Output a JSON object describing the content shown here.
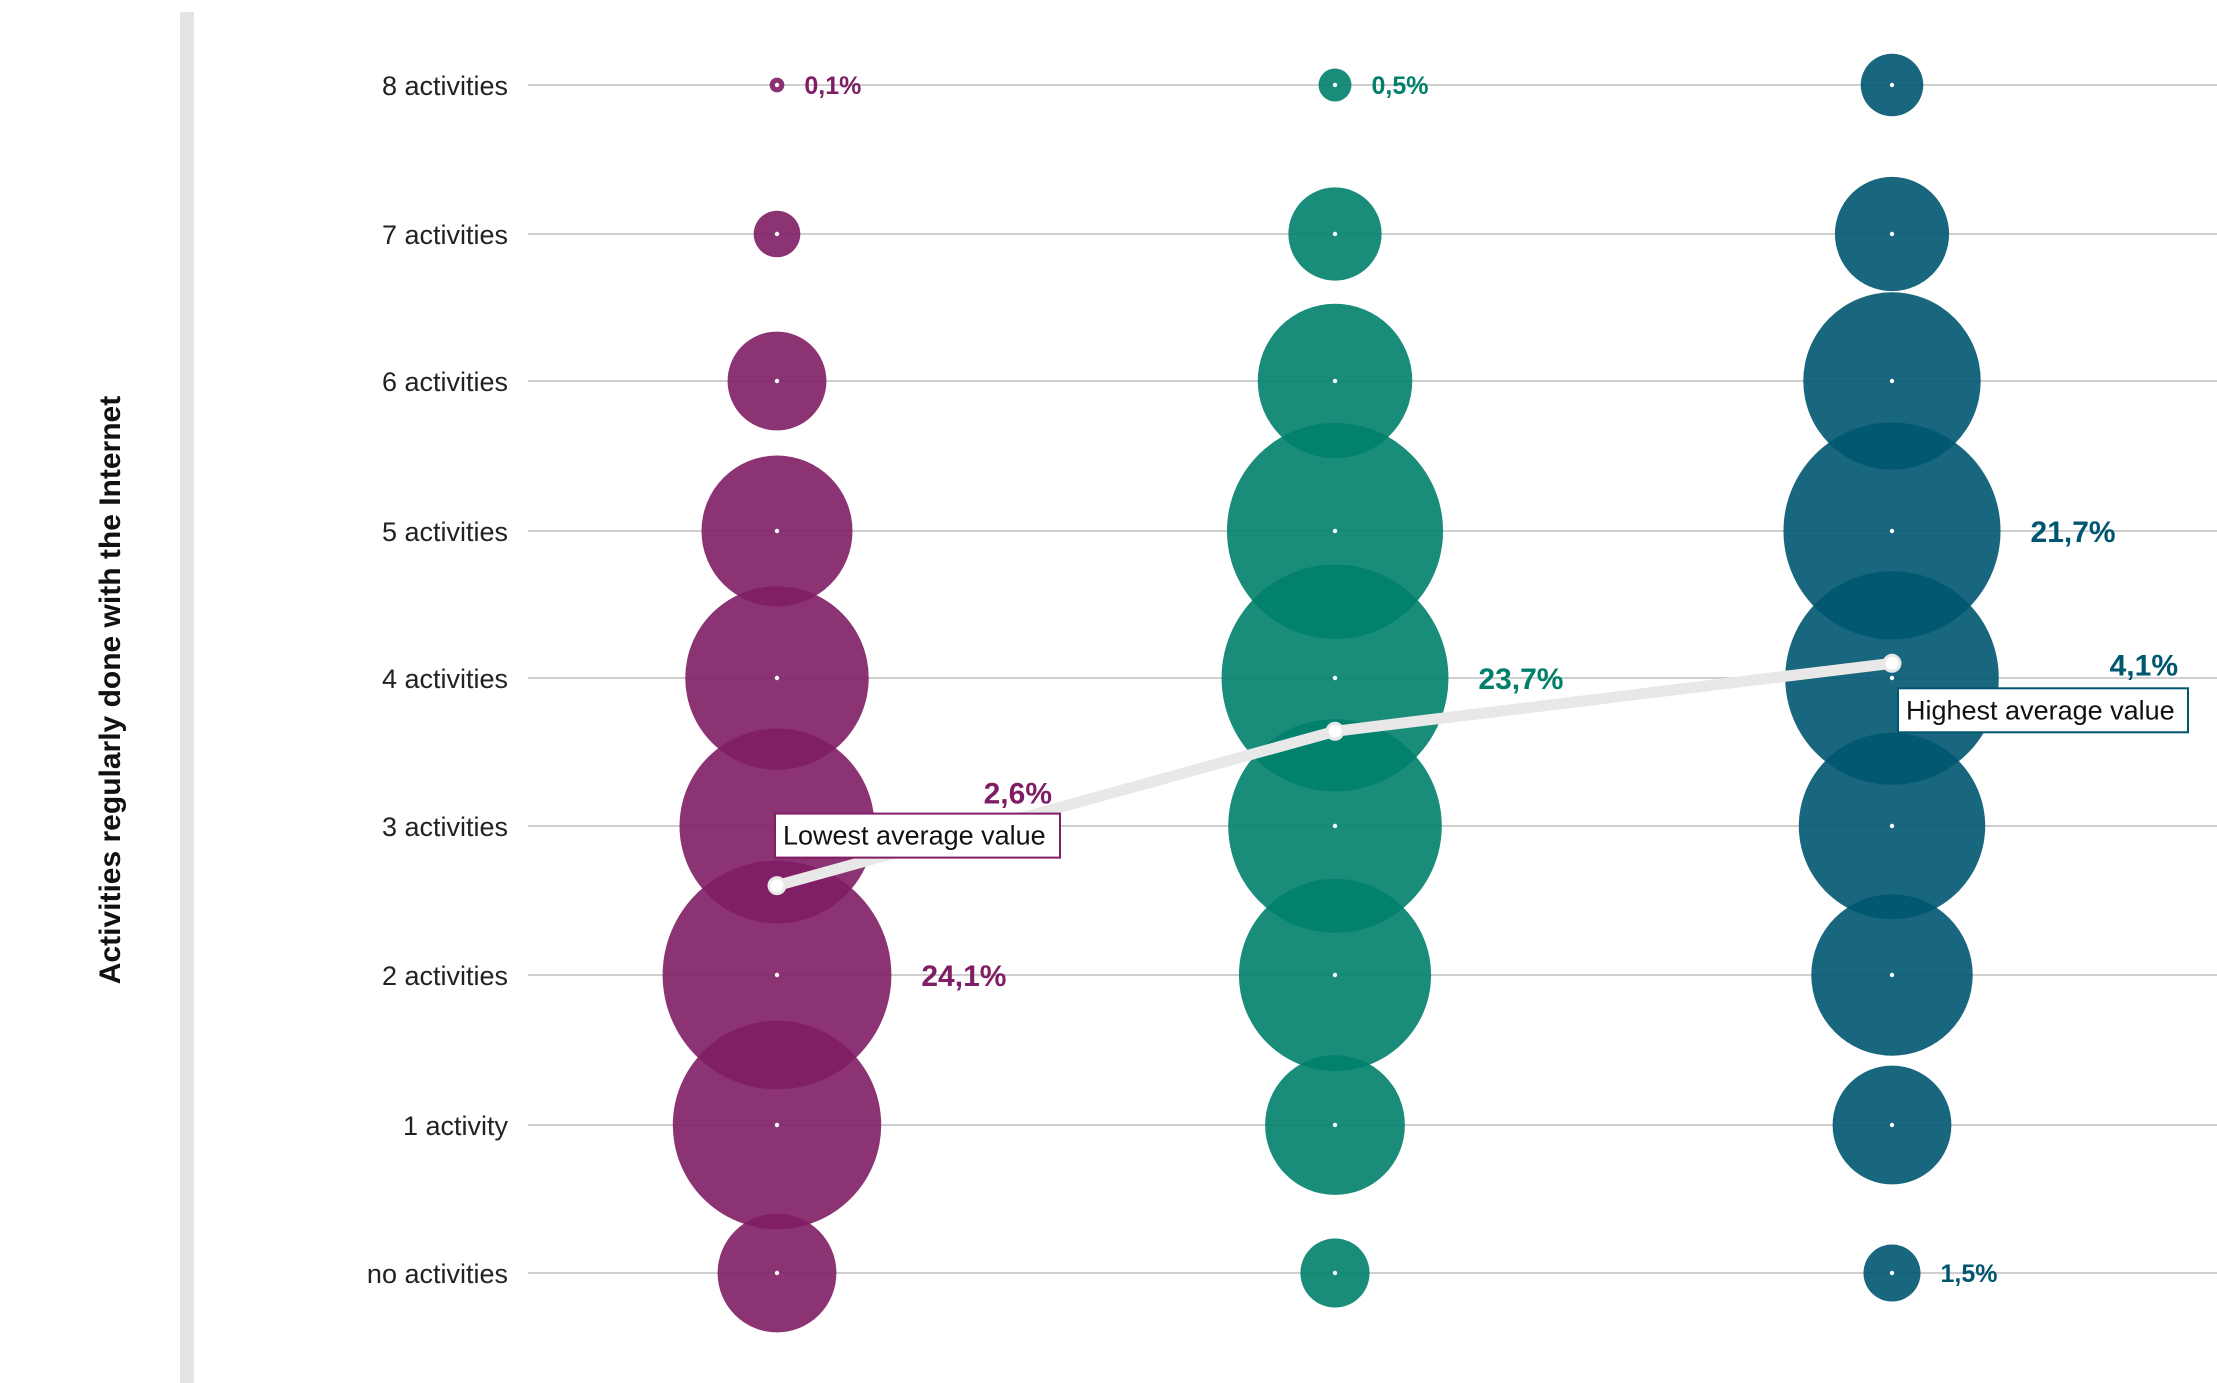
{
  "chart_data": {
    "type": "bubble",
    "ylabel": "Activities regularly done with the Internet",
    "categories": [
      "8 activities",
      "7 activities",
      "6 activities",
      "5 activities",
      "4 activities",
      "3 activities",
      "2 activities",
      "1 activity",
      "no activities"
    ],
    "series": [
      {
        "color": "#7f1d65",
        "values": [
          0.1,
          1.0,
          4.5,
          10.5,
          15.5,
          17.5,
          24.1,
          20.0,
          6.5
        ],
        "average": 2.6,
        "labels": [
          {
            "row": 0,
            "text": "0,1%",
            "size": "sm"
          },
          {
            "row": 6,
            "text": "24,1%",
            "size": "lg"
          }
        ],
        "callout": "Lowest average value",
        "avg_label": "2,6%"
      },
      {
        "color": "#00806b",
        "values": [
          0.5,
          4.0,
          11.0,
          21.5,
          23.7,
          21.0,
          17.0,
          9.0,
          2.2
        ],
        "average": 3.64,
        "labels": [
          {
            "row": 0,
            "text": "0,5%",
            "size": "sm"
          },
          {
            "row": 4,
            "text": "23,7%",
            "size": "lg"
          }
        ],
        "callout": "",
        "avg_label": ""
      },
      {
        "color": "#005670",
        "values": [
          1.8,
          6.0,
          14.5,
          21.7,
          21.0,
          16.0,
          12.0,
          6.5,
          1.5
        ],
        "average": 4.1,
        "labels": [
          {
            "row": 3,
            "text": "21,7%",
            "size": "lg"
          },
          {
            "row": 8,
            "text": "1,5%",
            "size": "sm"
          }
        ],
        "callout": "Highest average value",
        "avg_label": "4,1%"
      }
    ]
  }
}
